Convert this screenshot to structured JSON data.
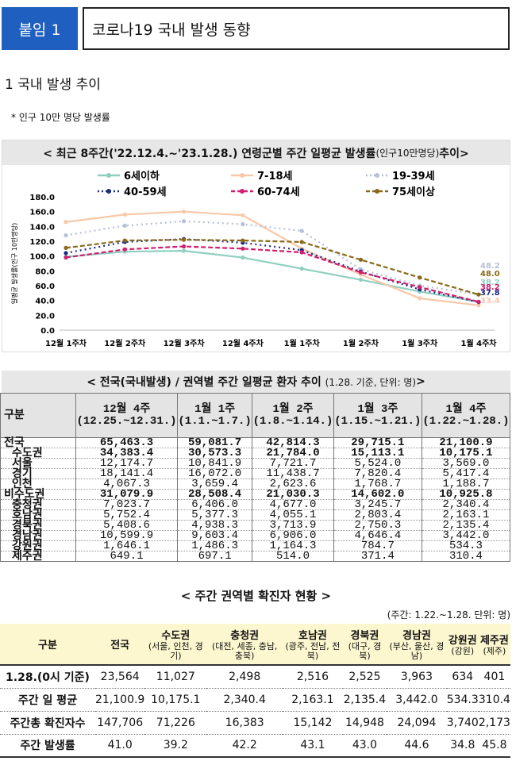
{
  "header": {
    "badge": "붙임 1",
    "title": "코로나19 국내 발생 동향"
  },
  "section": {
    "title": "1  국내 발생 추이",
    "note": "* 인구 10만 명당 발생률"
  },
  "colors": {
    "badge": "#1f5fbf",
    "header_bg": "#e7e7e7",
    "table2_header_bg": "#fdf7cf"
  },
  "chart_data": {
    "type": "line",
    "title": "< 최근 8주간('22.12.4.~'23.1.28.) 연령군별 주간 일평균 발생률",
    "title_suffix": "(인구10만명당)",
    "title_end": " 추이>",
    "ylabel": "일평균 발생률(인구 10만명당)",
    "ylim": [
      0,
      180
    ],
    "yticks": [
      "0.0",
      "20.0",
      "40.0",
      "60.0",
      "80.0",
      "100.0",
      "120.0",
      "140.0",
      "160.0",
      "180.0"
    ],
    "categories": [
      "12월 1주차",
      "12월 2주차",
      "12월 3주차",
      "12월 4주차",
      "1월 1주차",
      "1월 2주차",
      "1월 3주차",
      "1월 4주차"
    ],
    "series": [
      {
        "name": "6세이하",
        "color": "#8fcfc0",
        "dash": "solid",
        "values": [
          99,
          106,
          107,
          98,
          83,
          68,
          52,
          38.2
        ]
      },
      {
        "name": "7-18세",
        "color": "#f8c8a8",
        "dash": "solid",
        "values": [
          146,
          156,
          160,
          155,
          110,
          75,
          43,
          33.4
        ]
      },
      {
        "name": "19-39세",
        "color": "#b8bfd8",
        "dash": "dot",
        "values": [
          128,
          141,
          147,
          143,
          134,
          82,
          60,
          48.2
        ]
      },
      {
        "name": "40-59세",
        "color": "#1c2a80",
        "dash": "dot",
        "values": [
          104,
          119,
          123,
          118,
          108,
          79,
          55,
          37.8
        ]
      },
      {
        "name": "60-74세",
        "color": "#d02070",
        "dash": "dash",
        "values": [
          98,
          109,
          113,
          110,
          105,
          78,
          58,
          38.2
        ]
      },
      {
        "name": "75세이상",
        "color": "#8a6a1a",
        "dash": "dash",
        "values": [
          111,
          121,
          122,
          121,
          119,
          95,
          71,
          48.0
        ]
      }
    ],
    "end_labels": [
      "48.2",
      "48.0",
      "38.2",
      "38.2",
      "37.8",
      "33.4"
    ]
  },
  "table1": {
    "title": "< 전국(국내발생) / 권역별 주간 일평균 환자 추이",
    "title_small": "(1.28. 기준, 단위: 명)",
    "title_end": " >",
    "row_label": "구분",
    "columns": [
      "12월 4주\n(12.25.~12.31.)",
      "1월 1주\n(1.1.~1.7.)",
      "1월 2주\n(1.8.~1.14.)",
      "1월 3주\n(1.15.~1.21.)",
      "1월 4주\n(1.22.~1.28.)"
    ],
    "rows": [
      {
        "label": "전국",
        "values": [
          "65,463.3",
          "59,081.7",
          "42,814.3",
          "29,715.1",
          "21,100.9"
        ]
      },
      {
        "label": "수도권",
        "values": [
          "34,383.4",
          "30,573.3",
          "21,784.0",
          "15,113.1",
          "10,175.1"
        ]
      },
      {
        "label": "서울",
        "values": [
          "12,174.7",
          "10,841.9",
          "7,721.7",
          "5,524.0",
          "3,569.0"
        ]
      },
      {
        "label": "경기",
        "values": [
          "18,141.4",
          "16,072.0",
          "11,438.7",
          "7,820.4",
          "5,417.4"
        ]
      },
      {
        "label": "인천",
        "values": [
          "4,067.3",
          "3,659.4",
          "2,623.6",
          "1,768.7",
          "1,188.7"
        ]
      },
      {
        "label": "비수도권",
        "values": [
          "31,079.9",
          "28,508.4",
          "21,030.3",
          "14,602.0",
          "10,925.8"
        ]
      },
      {
        "label": "충청권",
        "values": [
          "7,023.7",
          "6,406.0",
          "4,677.0",
          "3,245.7",
          "2,340.4"
        ]
      },
      {
        "label": "호남권",
        "values": [
          "5,752.4",
          "5,377.3",
          "4,055.1",
          "2,803.4",
          "2,163.1"
        ]
      },
      {
        "label": "경북권",
        "values": [
          "5,408.6",
          "4,938.3",
          "3,713.9",
          "2,750.3",
          "2,135.4"
        ]
      },
      {
        "label": "경남권",
        "values": [
          "10,599.9",
          "9,603.4",
          "6,906.0",
          "4,646.4",
          "3,442.0"
        ]
      },
      {
        "label": "강원권",
        "values": [
          "1,646.1",
          "1,486.3",
          "1,164.3",
          "784.7",
          "534.3"
        ]
      },
      {
        "label": "제주권",
        "values": [
          "649.1",
          "697.1",
          "514.0",
          "371.4",
          "310.4"
        ]
      }
    ]
  },
  "table2": {
    "title": "< 주간 권역별 확진자 현황 >",
    "unit": "(주간: 1.22.~1.28. 단위: 명)",
    "row_label": "구분",
    "columns": [
      {
        "name": "전국",
        "sub": ""
      },
      {
        "name": "수도권",
        "sub": "(서울, 인천, 경기)"
      },
      {
        "name": "충청권",
        "sub": "(대전, 세종, 충남, 충북)"
      },
      {
        "name": "호남권",
        "sub": "(광주, 전남, 전북)"
      },
      {
        "name": "경북권",
        "sub": "(대구, 경북)"
      },
      {
        "name": "경남권",
        "sub": "(부산, 울산, 경남)"
      },
      {
        "name": "강원권",
        "sub": "(강원)"
      },
      {
        "name": "제주권",
        "sub": "(제주)"
      }
    ],
    "rows": [
      {
        "label": "1.28.(0시 기준)",
        "values": [
          "23,564",
          "11,027",
          "2,498",
          "2,516",
          "2,525",
          "3,963",
          "634",
          "401"
        ]
      },
      {
        "label": "주간 일 평균",
        "values": [
          "21,100.9",
          "10,175.1",
          "2,340.4",
          "2,163.1",
          "2,135.4",
          "3,442.0",
          "534.3",
          "310.4"
        ]
      },
      {
        "label": "주간총 확진자수",
        "values": [
          "147,706",
          "71,226",
          "16,383",
          "15,142",
          "14,948",
          "24,094",
          "3,740",
          "2,173"
        ]
      },
      {
        "label": "주간 발생률",
        "values": [
          "41.0",
          "39.2",
          "42.2",
          "43.1",
          "43.0",
          "44.6",
          "34.8",
          "45.8"
        ]
      }
    ]
  }
}
